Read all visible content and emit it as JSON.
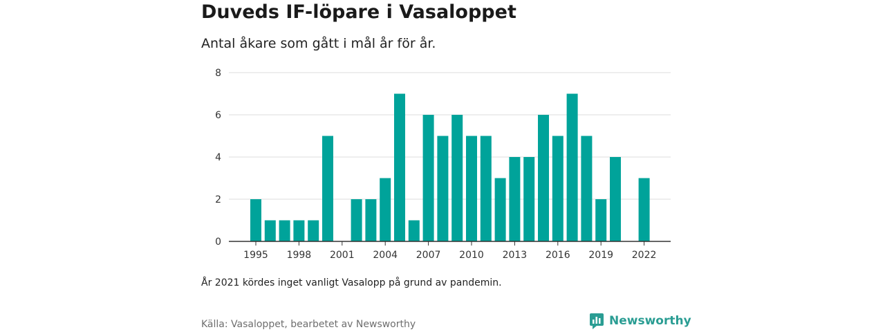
{
  "title": "Duveds IF-löpare i Vasaloppet",
  "subtitle": "Antal åkare som gått i mål år för år.",
  "note": "År 2021 kördes inget vanligt Vasalopp på grund av pandemin.",
  "source": "Källa: Vasaloppet, bearbetet av Newsworthy",
  "brand": {
    "name": "Newsworthy",
    "icon": "newsworthy-logo-icon",
    "color": "#2a9d93"
  },
  "chart_data": {
    "type": "bar",
    "title": "Duveds IF-löpare i Vasaloppet",
    "subtitle": "Antal åkare som gått i mål år för år.",
    "xlabel": "",
    "ylabel": "",
    "x": [
      1995,
      1996,
      1997,
      1998,
      1999,
      2000,
      2001,
      2002,
      2003,
      2004,
      2005,
      2006,
      2007,
      2008,
      2009,
      2010,
      2011,
      2012,
      2013,
      2014,
      2015,
      2016,
      2017,
      2018,
      2019,
      2020,
      2021,
      2022
    ],
    "values": [
      2,
      1,
      1,
      1,
      1,
      5,
      null,
      2,
      2,
      3,
      7,
      1,
      6,
      5,
      6,
      5,
      5,
      3,
      4,
      4,
      6,
      5,
      7,
      5,
      2,
      4,
      null,
      3
    ],
    "ylim": [
      0,
      8
    ],
    "y_ticks": [
      0,
      2,
      4,
      6,
      8
    ],
    "x_ticks": [
      1995,
      1998,
      2001,
      2004,
      2007,
      2010,
      2013,
      2016,
      2019,
      2022
    ],
    "bar_color": "#00a39a",
    "grid": true,
    "legend": "none"
  }
}
